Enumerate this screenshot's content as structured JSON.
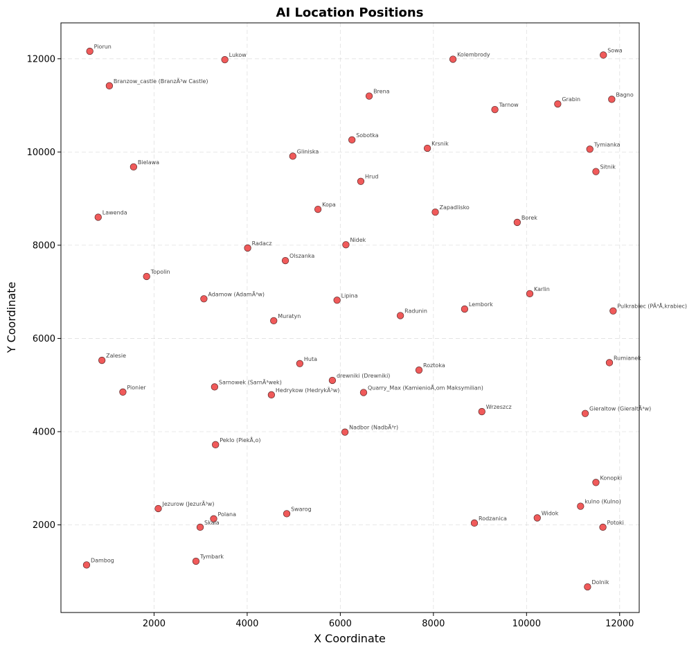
{
  "chart_data": {
    "type": "scatter",
    "title": "AI Location Positions",
    "xlabel": "X Coordinate",
    "ylabel": "Y Coordinate",
    "xlim": [
      0,
      12420
    ],
    "ylim": [
      120,
      12770
    ],
    "xticks": [
      2000,
      4000,
      6000,
      8000,
      10000,
      12000
    ],
    "yticks": [
      2000,
      4000,
      6000,
      8000,
      10000,
      12000
    ],
    "grid": true,
    "marker_color": "#f05a5a",
    "points": [
      {
        "label": "Piorun",
        "x": 620,
        "y": 12160
      },
      {
        "label": "Lukow",
        "x": 3520,
        "y": 11980
      },
      {
        "label": "Kolembrody",
        "x": 8420,
        "y": 11990
      },
      {
        "label": "Sowa",
        "x": 11650,
        "y": 12080
      },
      {
        "label": "Branzow_castle (BranzÃ³w Castle)",
        "x": 1040,
        "y": 11420
      },
      {
        "label": "Brena",
        "x": 6620,
        "y": 11200
      },
      {
        "label": "Bagno",
        "x": 11830,
        "y": 11130
      },
      {
        "label": "Grabin",
        "x": 10670,
        "y": 11030
      },
      {
        "label": "Tarnow",
        "x": 9320,
        "y": 10910
      },
      {
        "label": "Sobotka",
        "x": 6250,
        "y": 10260
      },
      {
        "label": "Krsnik",
        "x": 7870,
        "y": 10080
      },
      {
        "label": "Tymianka",
        "x": 11360,
        "y": 10060
      },
      {
        "label": "Gliniska",
        "x": 4980,
        "y": 9910
      },
      {
        "label": "Bielawa",
        "x": 1560,
        "y": 9680
      },
      {
        "label": "Sitnik",
        "x": 11490,
        "y": 9580
      },
      {
        "label": "Hrud",
        "x": 6440,
        "y": 9370
      },
      {
        "label": "Kopa",
        "x": 5520,
        "y": 8770
      },
      {
        "label": "Zapadlisko",
        "x": 8040,
        "y": 8710
      },
      {
        "label": "Lawenda",
        "x": 800,
        "y": 8600
      },
      {
        "label": "Borek",
        "x": 9800,
        "y": 8490
      },
      {
        "label": "Nidek",
        "x": 6120,
        "y": 8010
      },
      {
        "label": "Radacz",
        "x": 4010,
        "y": 7940
      },
      {
        "label": "Olszanka",
        "x": 4820,
        "y": 7670
      },
      {
        "label": "Topolin",
        "x": 1840,
        "y": 7330
      },
      {
        "label": "Karlin",
        "x": 10070,
        "y": 6960
      },
      {
        "label": "Adamow (AdamÃ³w)",
        "x": 3070,
        "y": 6850
      },
      {
        "label": "Lipina",
        "x": 5930,
        "y": 6820
      },
      {
        "label": "Lembork",
        "x": 8670,
        "y": 6630
      },
      {
        "label": "Pulkrabiec (PÃ³Å‚krabiec)",
        "x": 11860,
        "y": 6590
      },
      {
        "label": "Radunin",
        "x": 7290,
        "y": 6490
      },
      {
        "label": "Muratyn",
        "x": 4570,
        "y": 6380
      },
      {
        "label": "Zalesie",
        "x": 880,
        "y": 5530
      },
      {
        "label": "Rumianek",
        "x": 11780,
        "y": 5480
      },
      {
        "label": "Huta",
        "x": 5130,
        "y": 5460
      },
      {
        "label": "Roztoka",
        "x": 7690,
        "y": 5320
      },
      {
        "label": "drewniki (Drewniki)",
        "x": 5830,
        "y": 5100
      },
      {
        "label": "Sarnowek (SarnÃ³wek)",
        "x": 3300,
        "y": 4960
      },
      {
        "label": "Pionier",
        "x": 1330,
        "y": 4850
      },
      {
        "label": "Quarry_Max (KamienioÅ‚om Maksymilian)",
        "x": 6500,
        "y": 4840
      },
      {
        "label": "Hedrykow (HedrykÃ³w)",
        "x": 4520,
        "y": 4790
      },
      {
        "label": "Wrzeszcz",
        "x": 9040,
        "y": 4430
      },
      {
        "label": "Gieraltow (GieraltÃ³w)",
        "x": 11260,
        "y": 4390
      },
      {
        "label": "Nadbor (NadbÃ³r)",
        "x": 6100,
        "y": 3990
      },
      {
        "label": "Peklo (PiekÅ‚o)",
        "x": 3320,
        "y": 3720
      },
      {
        "label": "Konopki",
        "x": 11490,
        "y": 2910
      },
      {
        "label": "kulno (Kulno)",
        "x": 11160,
        "y": 2400
      },
      {
        "label": "Jezurow (JezurÃ³w)",
        "x": 2090,
        "y": 2350
      },
      {
        "label": "Swarog",
        "x": 4850,
        "y": 2240
      },
      {
        "label": "Polana",
        "x": 3280,
        "y": 2130
      },
      {
        "label": "Widok",
        "x": 10230,
        "y": 2150
      },
      {
        "label": "Rodzanica",
        "x": 8880,
        "y": 2040
      },
      {
        "label": "Skala",
        "x": 2990,
        "y": 1950
      },
      {
        "label": "Potoki",
        "x": 11640,
        "y": 1950
      },
      {
        "label": "Tymbark",
        "x": 2900,
        "y": 1220
      },
      {
        "label": "Dambog",
        "x": 550,
        "y": 1140
      },
      {
        "label": "Dolnik",
        "x": 11310,
        "y": 670
      }
    ]
  }
}
